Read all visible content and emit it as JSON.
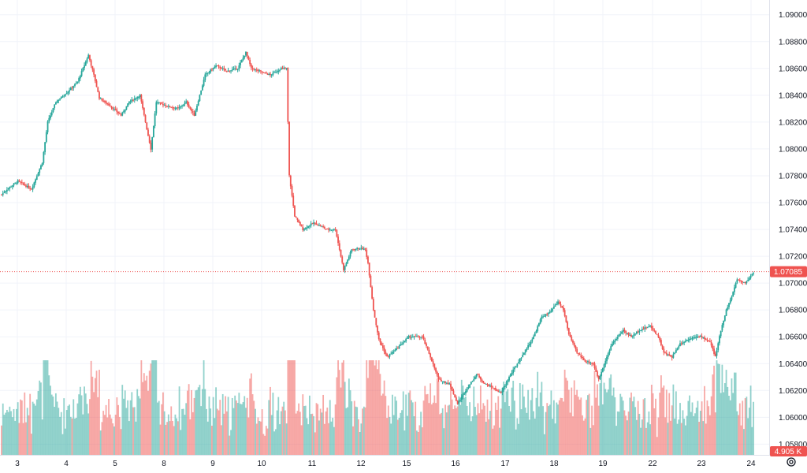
{
  "chart_data": {
    "type": "candlestick",
    "price_axis": {
      "ticks": [
        "1.09000",
        "1.08800",
        "1.08600",
        "1.08400",
        "1.08200",
        "1.08000",
        "1.07800",
        "1.07600",
        "1.07400",
        "1.07200",
        "1.07000",
        "1.06800",
        "1.06600",
        "1.06400",
        "1.06200",
        "1.06000",
        "1.05800"
      ],
      "range": [
        1.0572,
        1.0911
      ]
    },
    "date_axis": {
      "ticks": [
        "3",
        "4",
        "5",
        "8",
        "9",
        "10",
        "11",
        "12",
        "15",
        "16",
        "17",
        "18",
        "19",
        "22",
        "23",
        "24"
      ]
    },
    "last_price": {
      "label": "1.07085",
      "value": 1.07085
    },
    "volume_label": "4.905 K",
    "price_path": [
      [
        0,
        1.0766
      ],
      [
        4,
        1.077
      ],
      [
        12,
        1.0776
      ],
      [
        22,
        1.077
      ],
      [
        30,
        1.079
      ],
      [
        34,
        1.082
      ],
      [
        40,
        1.0835
      ],
      [
        48,
        1.0842
      ],
      [
        56,
        1.085
      ],
      [
        60,
        1.086
      ],
      [
        64,
        1.087
      ],
      [
        68,
        1.0855
      ],
      [
        72,
        1.0838
      ],
      [
        80,
        1.0832
      ],
      [
        88,
        1.0825
      ],
      [
        94,
        1.0835
      ],
      [
        102,
        1.084
      ],
      [
        106,
        1.082
      ],
      [
        110,
        1.08
      ],
      [
        114,
        1.0835
      ],
      [
        122,
        1.0832
      ],
      [
        130,
        1.083
      ],
      [
        136,
        1.0835
      ],
      [
        142,
        1.0825
      ],
      [
        150,
        1.0855
      ],
      [
        158,
        1.0862
      ],
      [
        166,
        1.0858
      ],
      [
        174,
        1.086
      ],
      [
        180,
        1.0872
      ],
      [
        184,
        1.086
      ],
      [
        190,
        1.0858
      ],
      [
        198,
        1.0855
      ],
      [
        206,
        1.086
      ],
      [
        210,
        1.086
      ],
      [
        212,
        1.078
      ],
      [
        216,
        1.075
      ],
      [
        222,
        1.074
      ],
      [
        230,
        1.0745
      ],
      [
        240,
        1.074
      ],
      [
        246,
        1.074
      ],
      [
        252,
        1.071
      ],
      [
        258,
        1.0725
      ],
      [
        264,
        1.0726
      ],
      [
        268,
        1.0725
      ],
      [
        270,
        1.0715
      ],
      [
        274,
        1.068
      ],
      [
        278,
        1.0658
      ],
      [
        284,
        1.0645
      ],
      [
        290,
        1.065
      ],
      [
        300,
        1.066
      ],
      [
        310,
        1.066
      ],
      [
        316,
        1.0645
      ],
      [
        322,
        1.0628
      ],
      [
        330,
        1.0625
      ],
      [
        336,
        1.061
      ],
      [
        342,
        1.062
      ],
      [
        350,
        1.0632
      ],
      [
        356,
        1.0625
      ],
      [
        362,
        1.0622
      ],
      [
        368,
        1.0618
      ],
      [
        374,
        1.063
      ],
      [
        380,
        1.064
      ],
      [
        386,
        1.065
      ],
      [
        392,
        1.066
      ],
      [
        398,
        1.0675
      ],
      [
        404,
        1.0678
      ],
      [
        410,
        1.0686
      ],
      [
        414,
        1.068
      ],
      [
        418,
        1.0662
      ],
      [
        424,
        1.0648
      ],
      [
        430,
        1.0642
      ],
      [
        436,
        1.064
      ],
      [
        440,
        1.0628
      ],
      [
        444,
        1.064
      ],
      [
        450,
        1.0655
      ],
      [
        458,
        1.0665
      ],
      [
        464,
        1.066
      ],
      [
        470,
        1.0665
      ],
      [
        478,
        1.0668
      ],
      [
        484,
        1.066
      ],
      [
        488,
        1.0648
      ],
      [
        494,
        1.0645
      ],
      [
        500,
        1.0655
      ],
      [
        510,
        1.066
      ],
      [
        516,
        1.066
      ],
      [
        522,
        1.0656
      ],
      [
        526,
        1.0645
      ],
      [
        530,
        1.0665
      ],
      [
        534,
        1.068
      ],
      [
        538,
        1.069
      ],
      [
        542,
        1.0703
      ],
      [
        548,
        1.07
      ],
      [
        554,
        1.0708
      ]
    ],
    "volume_max": 4905
  }
}
